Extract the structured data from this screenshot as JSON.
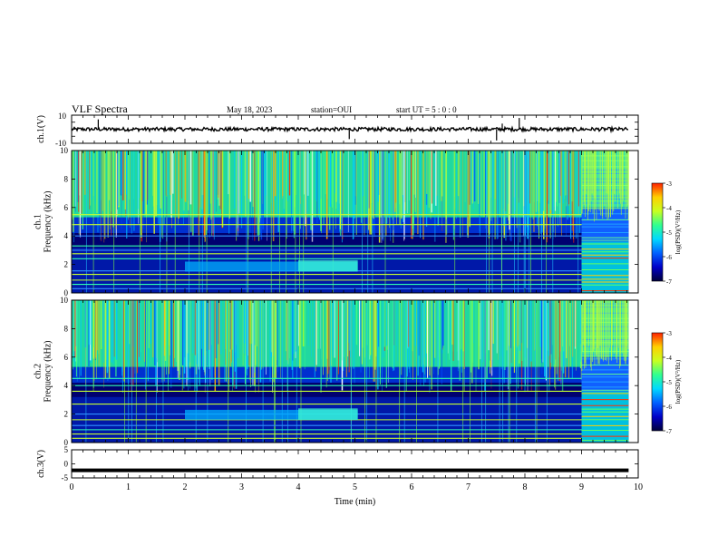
{
  "header": {
    "title": "VLF Spectra",
    "date": "May 18, 2023",
    "station": "station=OUI",
    "start": "start UT = 5 : 0 : 0"
  },
  "colors": {
    "trace": "#000000",
    "spec_gradient": [
      "#00003a",
      "#0000c8",
      "#0060ff",
      "#00d8ff",
      "#30ff90",
      "#c8ff20",
      "#ffd000",
      "#ff2000"
    ]
  },
  "chart_data": [
    {
      "type": "line",
      "name": "ch1-waveform",
      "ylabel": "ch.1(V)",
      "yticks": [
        "10",
        "-10"
      ],
      "ylim": [
        -10,
        10
      ],
      "xlim": [
        0,
        10
      ],
      "baseline": 0,
      "trace_end": 9.83,
      "spikes": [
        {
          "x": 0.47,
          "y": 7
        },
        {
          "x": 4.9,
          "y": -7
        },
        {
          "x": 7.5,
          "y": -8
        },
        {
          "x": 7.9,
          "y": 8
        },
        {
          "x": 7.6,
          "y": 4
        }
      ]
    },
    {
      "type": "heatmap",
      "name": "ch1-spectrogram",
      "ylabel": "ch.1\nFrequency (kHz)",
      "yticks": [
        "0",
        "2",
        "4",
        "6",
        "8",
        "10"
      ],
      "ylim": [
        0,
        10
      ],
      "xlim": [
        0,
        10
      ],
      "data_end": 9.83,
      "mode_change_at": 9.0,
      "colorbar": {
        "label": "log(PSD)(V²/Hz)",
        "ticks": [
          "-3",
          "-4",
          "-5",
          "-6",
          "-7"
        ],
        "range": [
          -7,
          -3
        ]
      },
      "lines_khz": [
        0.3,
        0.6,
        0.9,
        1.3,
        1.55,
        2.4,
        2.75,
        3.0,
        3.3,
        4.0,
        4.8,
        5.5
      ],
      "band": {
        "x0": 2.0,
        "x1": 5.05,
        "f0": 1.5,
        "f1": 2.2
      }
    },
    {
      "type": "heatmap",
      "name": "ch2-spectrogram",
      "ylabel": "ch.2\nFrequency (kHz)",
      "yticks": [
        "0",
        "2",
        "4",
        "6",
        "8",
        "10"
      ],
      "ylim": [
        0,
        10
      ],
      "xlim": [
        0,
        10
      ],
      "data_end": 9.83,
      "mode_change_at": 9.0,
      "colorbar": {
        "label": "log(PSD)(V²/Hz)",
        "ticks": [
          "-3",
          "-4",
          "-5",
          "-6",
          "-7"
        ],
        "range": [
          -7,
          -3
        ]
      },
      "lines_khz": [
        0.3,
        0.6,
        0.9,
        1.2,
        1.6,
        2.0,
        2.7,
        3.6,
        4.0,
        4.5
      ],
      "band": {
        "x0": 2.0,
        "x1": 5.05,
        "f0": 1.6,
        "f1": 2.3
      }
    },
    {
      "type": "line",
      "name": "ch3-waveform",
      "ylabel": "ch.3(V)",
      "yticks": [
        "5",
        "0",
        "-5"
      ],
      "ylim": [
        -5,
        5
      ],
      "xlim": [
        0,
        10
      ],
      "constant_value": -2.3,
      "trace_end": 9.83
    }
  ],
  "xaxis": {
    "label": "Time (min)",
    "ticks": [
      "0",
      "1",
      "2",
      "3",
      "4",
      "5",
      "6",
      "7",
      "8",
      "9",
      "10"
    ]
  }
}
